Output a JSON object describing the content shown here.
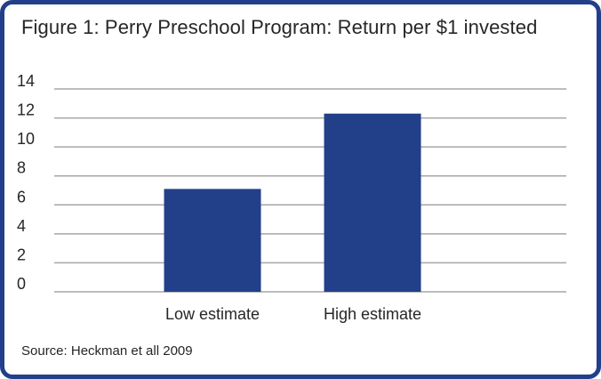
{
  "chart_data": {
    "type": "bar",
    "title": "Figure 1: Perry Preschool Program: Return per $1 invested",
    "categories": [
      "Low estimate",
      "High estimate"
    ],
    "values": [
      7.1,
      12.3
    ],
    "ylim": [
      0,
      14
    ],
    "yticks": [
      0,
      2,
      4,
      6,
      8,
      10,
      12,
      14
    ],
    "grid": true,
    "xlabel": "",
    "ylabel": "",
    "bar_color": "#223f8a",
    "grid_color": "#a6a6a6",
    "source": "Source: Heckman et all 2009"
  }
}
